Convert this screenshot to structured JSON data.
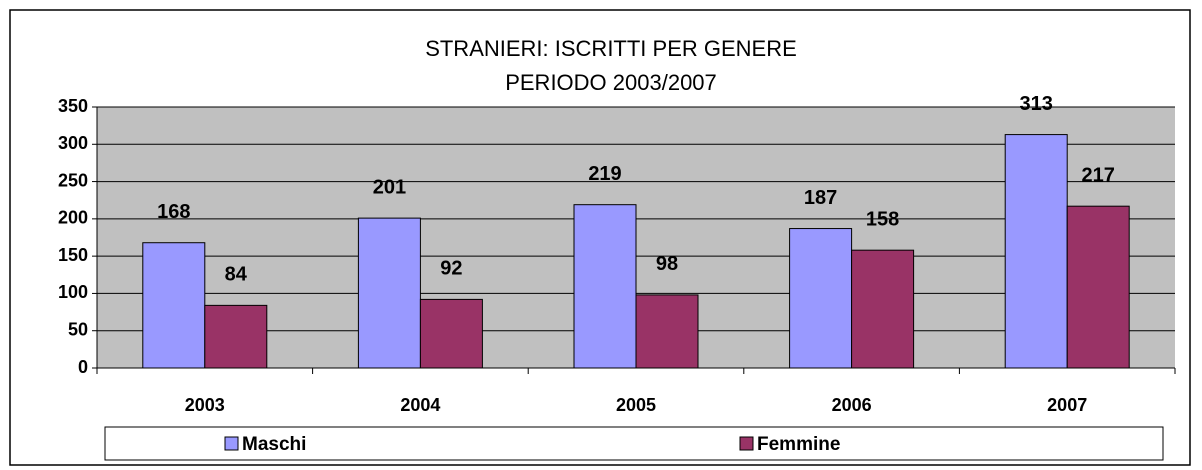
{
  "chart_data": {
    "type": "bar",
    "title": "STRANIERI: ISCRITTI PER GENERE",
    "subtitle": "PERIODO 2003/2007",
    "categories": [
      "2003",
      "2004",
      "2005",
      "2006",
      "2007"
    ],
    "series": [
      {
        "name": "Maschi",
        "color": "#9999ff",
        "values": [
          168,
          201,
          219,
          187,
          313
        ]
      },
      {
        "name": "Femmine",
        "color": "#993366",
        "values": [
          84,
          92,
          98,
          158,
          217
        ]
      }
    ],
    "ylim": [
      0,
      350
    ],
    "yticks": [
      0,
      50,
      100,
      150,
      200,
      250,
      300,
      350
    ],
    "grid": true,
    "legend": "bottom"
  }
}
